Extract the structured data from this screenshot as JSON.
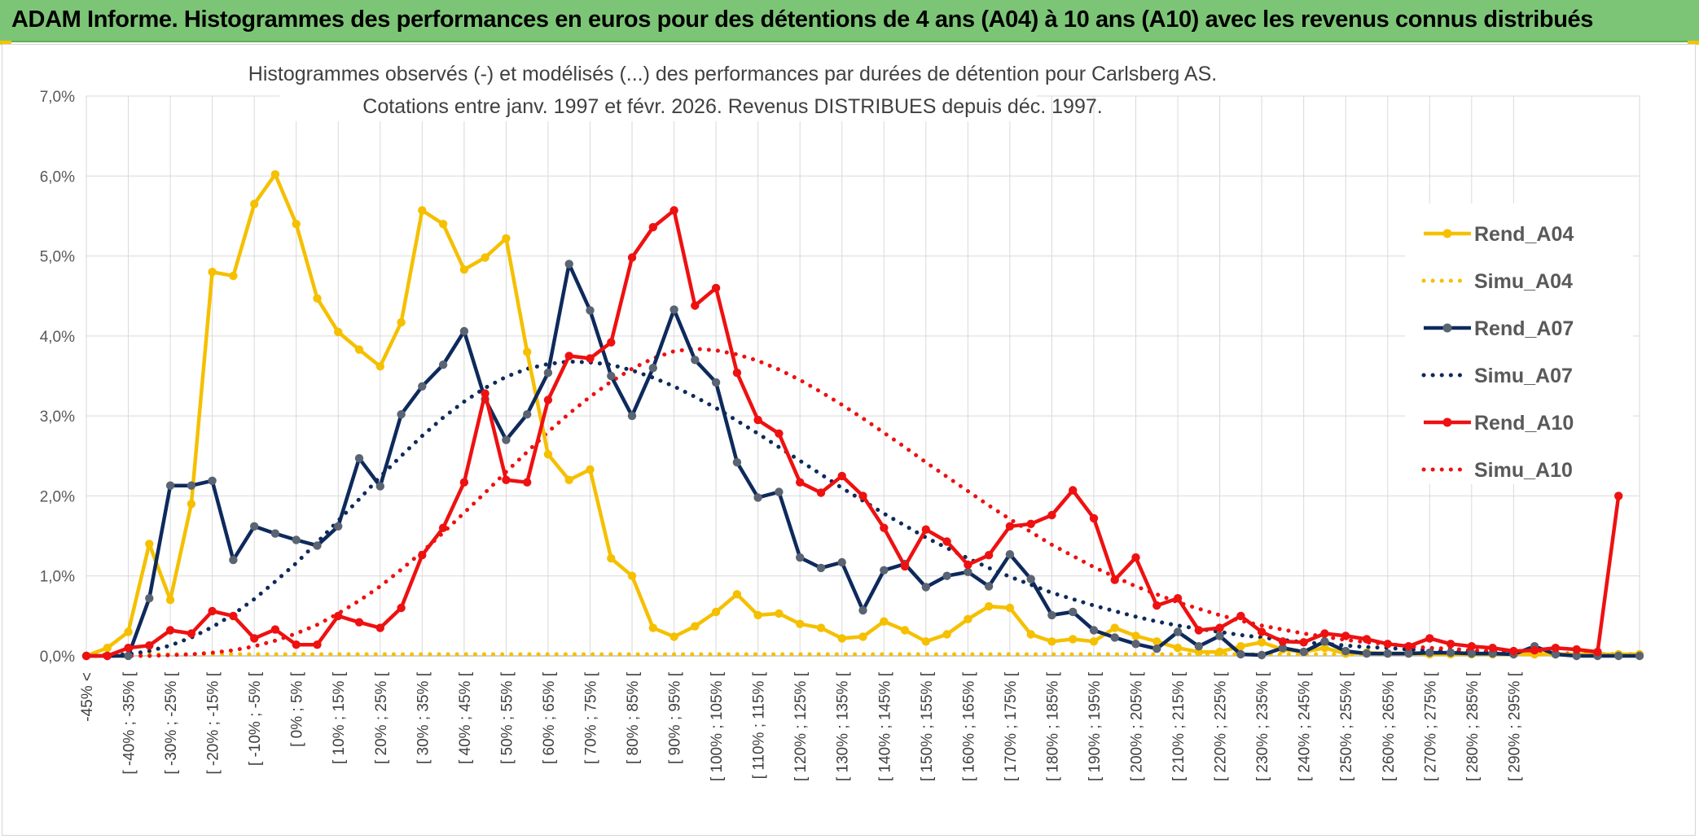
{
  "banner": {
    "title": "ADAM Informe. Histogrammes des performances en euros pour des détentions de 4 ans (A04) à 10 ans (A10) avec les revenus connus distribués"
  },
  "colors": {
    "banner_bg": "#7cc576",
    "gold": "#f5c000",
    "navy": "#0e2a5c",
    "red": "#ee1111",
    "grid": "#d9d9d9"
  },
  "chart_data": {
    "type": "line",
    "title_lines": [
      "Histogrammes observés (-) et modélisés (...) des performances par durées de détention pour Carlsberg AS.",
      "Cotations entre janv. 1997 et févr. 2026. Revenus DISTRIBUES depuis déc. 1997."
    ],
    "ylim": [
      0,
      7
    ],
    "y_ticks": [
      "0,0%",
      "1,0%",
      "2,0%",
      "3,0%",
      "4,0%",
      "5,0%",
      "6,0%",
      "7,0%"
    ],
    "x_tick_labels": [
      "-45% <",
      "[ -40% ; -35% [",
      "[ -30% ; -25% [",
      "[ -20% ; -15% [",
      "[ -10% ; -5% [",
      "[ 0% ; 5% [",
      "[ 10% ; 15% [",
      "[ 20% ; 25% [",
      "[ 30% ; 35% [",
      "[ 40% ; 45% [",
      "[ 50% ; 55% [",
      "[ 60% ; 65% [",
      "[ 70% ; 75% [",
      "[ 80% ; 85% [",
      "[ 90% ; 95% [",
      "[ 100% ; 105% [",
      "[ 110% ; 115% [",
      "[ 120% ; 125% [",
      "[ 130% ; 135% [",
      "[ 140% ; 145% [",
      "[ 150% ; 155% [",
      "[ 160% ; 165% [",
      "[ 170% ; 175% [",
      "[ 180% ; 185% [",
      "[ 190% ; 195% [",
      "[ 200% ; 205% [",
      "[ 210% ; 215% [",
      "[ 220% ; 225% [",
      "[ 230% ; 235% [",
      "[ 240% ; 245% [",
      "[ 250% ; 255% [",
      "[ 260% ; 265% [",
      "[ 270% ; 275% [",
      "[ 280% ; 285% [",
      "[ 290% ; 295% ["
    ],
    "legend_position": "right",
    "grid": true,
    "series": [
      {
        "name": "Rend_A04",
        "style": "solid",
        "color": "#f5c000",
        "values": [
          0.0,
          0.1,
          0.3,
          1.4,
          0.7,
          1.9,
          4.8,
          4.75,
          5.65,
          6.02,
          5.4,
          4.47,
          4.05,
          3.83,
          3.62,
          4.17,
          5.57,
          5.4,
          4.83,
          4.98,
          5.22,
          3.8,
          2.52,
          2.2,
          2.33,
          1.22,
          1.0,
          0.35,
          0.24,
          0.37,
          0.55,
          0.77,
          0.51,
          0.53,
          0.4,
          0.35,
          0.22,
          0.24,
          0.43,
          0.32,
          0.18,
          0.27,
          0.46,
          0.62,
          0.6,
          0.27,
          0.18,
          0.21,
          0.18,
          0.35,
          0.25,
          0.18,
          0.1,
          0.05,
          0.05,
          0.12,
          0.17,
          0.08,
          0.05,
          0.1,
          0.03,
          0.04,
          0.03,
          0.03,
          0.02,
          0.02,
          0.02,
          0.02,
          0.02,
          0.02,
          0.02,
          0.02,
          0.02,
          0.02,
          0.02
        ]
      },
      {
        "name": "Simu_A04",
        "style": "dotted",
        "color": "#f5c000",
        "values": [
          0.02,
          0.02,
          0.02,
          0.02,
          0.02,
          0.02,
          0.02,
          0.02,
          0.02,
          0.02,
          0.02,
          0.02,
          0.02,
          0.02,
          0.02,
          0.02,
          0.02,
          0.02,
          0.02,
          0.02,
          0.02,
          0.02,
          0.02,
          0.02,
          0.02,
          0.02,
          0.02,
          0.02,
          0.02,
          0.02,
          0.02,
          0.02,
          0.02,
          0.02,
          0.02,
          0.02,
          0.02,
          0.02,
          0.02,
          0.02,
          0.02,
          0.02,
          0.02,
          0.02,
          0.02,
          0.02,
          0.02,
          0.02,
          0.02,
          0.02,
          0.02,
          0.02,
          0.02,
          0.02,
          0.02,
          0.02,
          0.02,
          0.02,
          0.02,
          0.02,
          0.02,
          0.02,
          0.02,
          0.02,
          0.02,
          0.02,
          0.02,
          0.02,
          0.02,
          0.02,
          0.02,
          0.02,
          0.02,
          0.02,
          0.02
        ]
      },
      {
        "name": "Rend_A07",
        "style": "solid",
        "color": "#0e2a5c",
        "values": [
          0.0,
          0.0,
          0.0,
          0.72,
          2.13,
          2.13,
          2.19,
          1.2,
          1.62,
          1.53,
          1.45,
          1.38,
          1.62,
          2.47,
          2.12,
          3.02,
          3.37,
          3.64,
          4.06,
          3.21,
          2.7,
          3.02,
          3.54,
          4.9,
          4.32,
          3.5,
          3.0,
          3.6,
          4.33,
          3.7,
          3.42,
          2.42,
          1.98,
          2.05,
          1.23,
          1.1,
          1.17,
          0.57,
          1.07,
          1.15,
          0.86,
          1.0,
          1.05,
          0.87,
          1.27,
          0.96,
          0.51,
          0.55,
          0.32,
          0.23,
          0.15,
          0.09,
          0.3,
          0.12,
          0.25,
          0.02,
          0.01,
          0.1,
          0.05,
          0.18,
          0.06,
          0.03,
          0.03,
          0.03,
          0.04,
          0.04,
          0.03,
          0.03,
          0.02,
          0.12,
          0.02,
          0.0,
          0.0,
          0.0,
          0.0
        ]
      },
      {
        "name": "Simu_A07",
        "style": "dotted",
        "color": "#0e2a5c",
        "values": [
          0.0,
          0.01,
          0.02,
          0.06,
          0.13,
          0.23,
          0.36,
          0.52,
          0.71,
          0.93,
          1.16,
          1.42,
          1.69,
          1.96,
          2.24,
          2.5,
          2.75,
          2.98,
          3.18,
          3.35,
          3.49,
          3.59,
          3.65,
          3.68,
          3.67,
          3.64,
          3.57,
          3.48,
          3.37,
          3.24,
          3.1,
          2.94,
          2.78,
          2.61,
          2.44,
          2.27,
          2.1,
          1.94,
          1.78,
          1.63,
          1.48,
          1.35,
          1.22,
          1.1,
          0.99,
          0.89,
          0.79,
          0.71,
          0.63,
          0.56,
          0.49,
          0.43,
          0.38,
          0.34,
          0.3,
          0.26,
          0.23,
          0.2,
          0.17,
          0.15,
          0.13,
          0.11,
          0.1,
          0.08,
          0.07,
          0.06,
          0.05,
          0.05,
          0.04,
          0.03,
          0.03,
          0.02,
          0.02,
          0.02,
          0.02
        ]
      },
      {
        "name": "Rend_A10",
        "style": "solid",
        "color": "#ee1111",
        "values": [
          0.0,
          0.0,
          0.1,
          0.13,
          0.32,
          0.28,
          0.56,
          0.5,
          0.22,
          0.33,
          0.14,
          0.14,
          0.5,
          0.42,
          0.35,
          0.6,
          1.26,
          1.6,
          2.17,
          3.28,
          2.2,
          2.17,
          3.2,
          3.75,
          3.72,
          3.92,
          4.98,
          5.36,
          5.57,
          4.38,
          4.6,
          3.54,
          2.95,
          2.78,
          2.17,
          2.04,
          2.25,
          2.0,
          1.6,
          1.12,
          1.58,
          1.43,
          1.14,
          1.26,
          1.62,
          1.65,
          1.76,
          2.07,
          1.72,
          0.95,
          1.23,
          0.63,
          0.72,
          0.32,
          0.35,
          0.5,
          0.3,
          0.18,
          0.17,
          0.28,
          0.25,
          0.21,
          0.15,
          0.12,
          0.22,
          0.15,
          0.12,
          0.1,
          0.06,
          0.07,
          0.1,
          0.08,
          0.05,
          2.0
        ]
      },
      {
        "name": "Simu_A10",
        "style": "dotted",
        "color": "#ee1111",
        "values": [
          0.0,
          0.0,
          0.0,
          0.0,
          0.01,
          0.02,
          0.04,
          0.07,
          0.12,
          0.19,
          0.28,
          0.39,
          0.53,
          0.69,
          0.87,
          1.08,
          1.3,
          1.54,
          1.79,
          2.04,
          2.3,
          2.55,
          2.8,
          3.03,
          3.24,
          3.43,
          3.59,
          3.72,
          3.81,
          3.84,
          3.82,
          3.77,
          3.69,
          3.58,
          3.45,
          3.3,
          3.14,
          2.97,
          2.79,
          2.61,
          2.42,
          2.24,
          2.06,
          1.88,
          1.71,
          1.55,
          1.39,
          1.25,
          1.11,
          0.99,
          0.87,
          0.77,
          0.67,
          0.59,
          0.51,
          0.44,
          0.38,
          0.33,
          0.28,
          0.24,
          0.2,
          0.17,
          0.15,
          0.12,
          0.1,
          0.09,
          0.07,
          0.06,
          0.05,
          0.04,
          0.03,
          0.03,
          0.02,
          0.02
        ]
      }
    ]
  }
}
